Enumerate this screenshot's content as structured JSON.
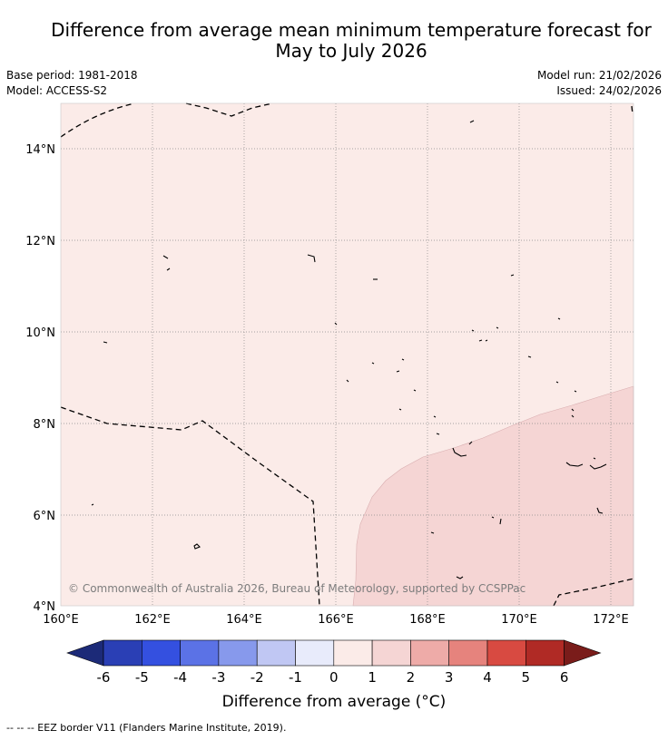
{
  "title": {
    "line1": "Difference from average mean minimum temperature forecast for",
    "line2": "May to July 2026"
  },
  "info": {
    "base_period": "Base period: 1981-2018",
    "model": "Model: ACCESS-S2",
    "model_run": "Model run: 21/02/2026",
    "issued": "Issued: 24/02/2026"
  },
  "map": {
    "lat_labels": [
      "14°N",
      "12°N",
      "10°N",
      "8°N",
      "6°N",
      "4°N"
    ],
    "lon_labels": [
      "160°E",
      "162°E",
      "164°E",
      "166°E",
      "168°E",
      "170°E",
      "172°E"
    ],
    "copyright": "© Commonwealth of Australia 2026, Bureau of Meteorology, supported by CCSPPac",
    "colors": {
      "anomaly_0_1": "#fbebe8",
      "anomaly_1_2": "#f5d5d4",
      "grid": "#8a8a8a",
      "eez_border": "#000000"
    }
  },
  "colorbar": {
    "ticks": [
      "-6",
      "-5",
      "-4",
      "-3",
      "-2",
      "-1",
      "0",
      "1",
      "2",
      "3",
      "4",
      "5",
      "6"
    ],
    "colors": [
      "#1c2a78",
      "#2a3fb5",
      "#3450e0",
      "#5b72e6",
      "#8799ec",
      "#c0c7f3",
      "#e8ebfb",
      "#fbebe8",
      "#f5d5d4",
      "#eeaba8",
      "#e6837d",
      "#d84a41",
      "#b02a25",
      "#7a1c1a"
    ],
    "label": "Difference from average (°C)"
  },
  "footer": {
    "legend": "--  --  -- EEZ border V11 (Flanders Marine Institute, 2019)."
  }
}
